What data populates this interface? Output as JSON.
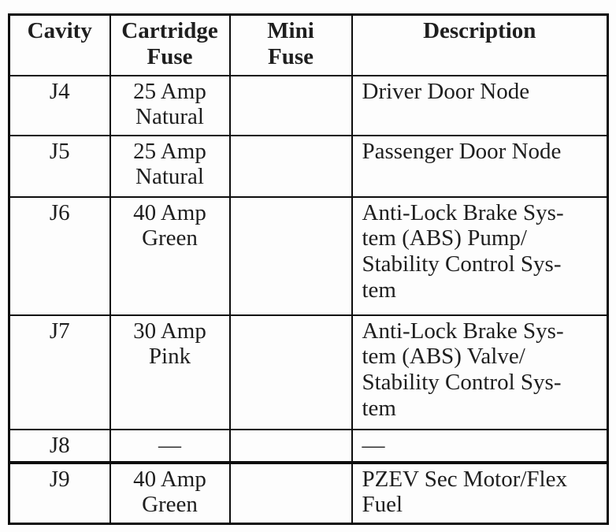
{
  "colors": {
    "background": "#fdfdfd",
    "border": "#0d0d0d",
    "text": "#1e1e1e"
  },
  "table": {
    "headers": {
      "cavity": "Cavity",
      "cartridge": "Cartridge\nFuse",
      "mini": "Mini\nFuse",
      "description": "Description"
    },
    "rows": [
      {
        "cavity": "J4",
        "cartridge": "25 Amp\nNatural",
        "mini": "",
        "description": "Driver Door Node"
      },
      {
        "cavity": "J5",
        "cartridge": "25 Amp\nNatural",
        "mini": "",
        "description": "Passenger Door Node"
      },
      {
        "cavity": "J6",
        "cartridge": "40 Amp\nGreen",
        "mini": "",
        "description": "Anti-Lock Brake Sys-\ntem (ABS) Pump/\nStability Control Sys-\ntem"
      },
      {
        "cavity": "J7",
        "cartridge": "30 Amp\nPink",
        "mini": "",
        "description": "Anti-Lock Brake Sys-\ntem (ABS) Valve/\nStability Control Sys-\ntem"
      },
      {
        "cavity": "J8",
        "cartridge": "—",
        "mini": "",
        "description": "—"
      },
      {
        "cavity": "J9",
        "cartridge": "40 Amp\nGreen",
        "mini": "",
        "description": "PZEV Sec Motor/Flex\nFuel"
      }
    ]
  }
}
